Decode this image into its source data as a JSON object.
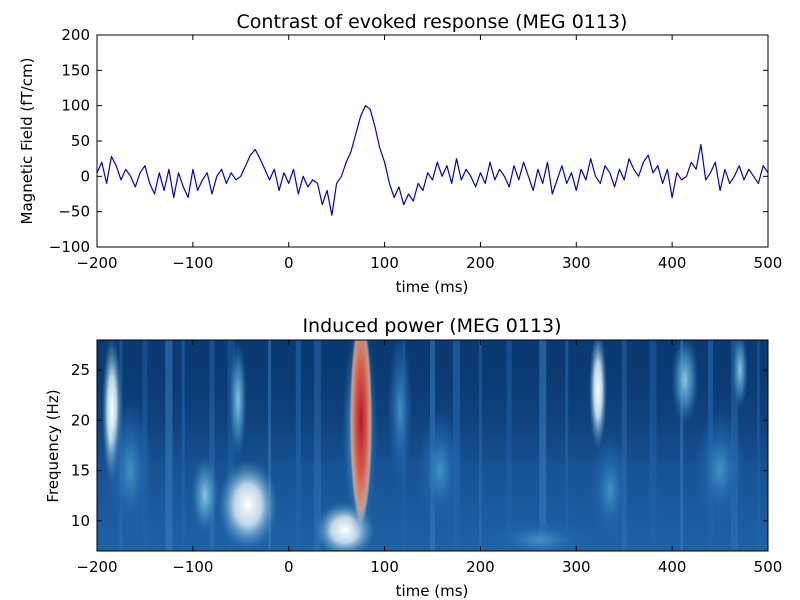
{
  "chart_data": [
    {
      "type": "line",
      "title": "Contrast of evoked response (MEG 0113)",
      "xlabel": "time (ms)",
      "ylabel": "Magnetic Field (fT/cm)",
      "xlim": [
        -200,
        500
      ],
      "ylim": [
        -100,
        200
      ],
      "xticks": [
        "−200",
        "−100",
        "0",
        "100",
        "200",
        "300",
        "400",
        "500"
      ],
      "yticks": [
        "−100",
        "−50",
        "0",
        "50",
        "100",
        "150",
        "200"
      ],
      "grid": false,
      "color": "#0000cc",
      "series": [
        {
          "x": [
            -200,
            -195,
            -190,
            -185,
            -180,
            -175,
            -170,
            -165,
            -160,
            -155,
            -150,
            -145,
            -140,
            -135,
            -130,
            -125,
            -120,
            -115,
            -110,
            -105,
            -100,
            -95,
            -90,
            -85,
            -80,
            -75,
            -70,
            -65,
            -60,
            -55,
            -50,
            -45,
            -40,
            -35,
            -30,
            -25,
            -20,
            -15,
            -10,
            -5,
            0,
            5,
            10,
            15,
            20,
            25,
            30,
            35,
            40,
            45,
            50,
            55,
            60,
            65,
            70,
            75,
            80,
            85,
            90,
            95,
            100,
            105,
            110,
            115,
            120,
            125,
            130,
            135,
            140,
            145,
            150,
            155,
            160,
            165,
            170,
            175,
            180,
            185,
            190,
            195,
            200,
            205,
            210,
            215,
            220,
            225,
            230,
            235,
            240,
            245,
            250,
            255,
            260,
            265,
            270,
            275,
            280,
            285,
            290,
            295,
            300,
            305,
            310,
            315,
            320,
            325,
            330,
            335,
            340,
            345,
            350,
            355,
            360,
            365,
            370,
            375,
            380,
            385,
            390,
            395,
            400,
            405,
            410,
            415,
            420,
            425,
            430,
            435,
            440,
            445,
            450,
            455,
            460,
            465,
            470,
            475,
            480,
            485,
            490,
            495,
            500
          ],
          "values": [
            5,
            20,
            -10,
            28,
            15,
            -5,
            10,
            0,
            -15,
            5,
            15,
            -10,
            -25,
            5,
            -20,
            10,
            -30,
            5,
            -15,
            -30,
            10,
            -20,
            -5,
            5,
            -25,
            0,
            10,
            -10,
            5,
            -5,
            0,
            15,
            30,
            38,
            25,
            10,
            -5,
            10,
            -20,
            5,
            -10,
            10,
            -25,
            0,
            -15,
            -5,
            -10,
            -40,
            -20,
            -55,
            -10,
            0,
            20,
            35,
            60,
            85,
            100,
            95,
            70,
            40,
            20,
            -10,
            -30,
            -15,
            -40,
            -25,
            -35,
            -10,
            -20,
            5,
            -5,
            20,
            0,
            15,
            -10,
            25,
            -5,
            10,
            0,
            -15,
            5,
            -10,
            20,
            -5,
            10,
            0,
            -15,
            15,
            -5,
            20,
            0,
            -20,
            10,
            -10,
            20,
            -25,
            -5,
            15,
            -10,
            5,
            -20,
            10,
            -5,
            25,
            0,
            -10,
            15,
            5,
            -15,
            10,
            -5,
            25,
            10,
            0,
            20,
            30,
            5,
            15,
            -10,
            10,
            -30,
            5,
            -5,
            0,
            20,
            10,
            45,
            -5,
            5,
            20,
            -20,
            10,
            -10,
            0,
            15,
            -5,
            10,
            0,
            -10,
            15,
            5
          ]
        }
      ]
    },
    {
      "type": "heatmap",
      "title": "Induced power (MEG 0113)",
      "xlabel": "time (ms)",
      "ylabel": "Frequency (Hz)",
      "xlim": [
        -200,
        500
      ],
      "ylim": [
        7,
        28
      ],
      "xticks": [
        "−200",
        "−100",
        "0",
        "100",
        "200",
        "300",
        "400",
        "500"
      ],
      "yticks": [
        "10",
        "15",
        "20",
        "25"
      ],
      "colormap": "RdBu_r",
      "colors": {
        "low": "#053061",
        "mid_low": "#2166ac",
        "mid": "#f7f7f7",
        "mid_high": "#f4a582",
        "high": "#b2182b"
      }
    }
  ]
}
